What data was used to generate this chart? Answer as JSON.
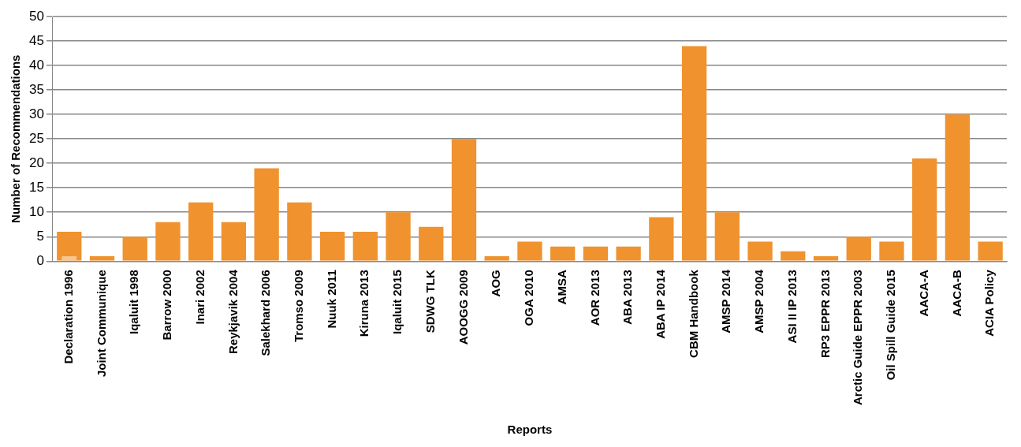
{
  "chart_data": {
    "type": "bar",
    "xlabel": "Reports",
    "ylabel": "Number of Recommendations",
    "categories": [
      "Declaration 1996",
      "Joint Communique",
      "Iqaluit 1998",
      "Barrow 2000",
      "Inari 2002",
      "Reykjavik 2004",
      "Salekhard 2006",
      "Tromso 2009",
      "Nuuk 2011",
      "Kiruna 2013",
      "Iqaluit 2015",
      "SDWG TLK",
      "AOOGG 2009",
      "AOG",
      "OGA 2010",
      "AMSA",
      "AOR 2013",
      "ABA 2013",
      "ABA IP 2014",
      "CBM Handbook",
      "AMSP 2014",
      "AMSP 2004",
      "ASI II IP 2013",
      "RP3 EPPR 2013",
      "Arctic Guide EPPR 2003",
      "Oil Spill Guide 2015",
      "AACA-A",
      "AACA-B",
      "ACIA Policy"
    ],
    "series": [
      {
        "color": "#f0922e",
        "values": [
          6,
          1,
          5,
          8,
          12,
          8,
          19,
          12,
          6,
          6,
          10,
          7,
          25,
          1,
          4,
          3,
          3,
          3,
          9,
          44,
          10,
          4,
          2,
          1,
          5,
          4,
          21,
          30,
          4
        ]
      },
      {
        "color": "#f7c690",
        "values": [
          1,
          null,
          null,
          null,
          null,
          null,
          null,
          null,
          null,
          null,
          null,
          null,
          null,
          null,
          null,
          null,
          null,
          null,
          null,
          null,
          null,
          null,
          null,
          null,
          null,
          null,
          null,
          null,
          null
        ]
      }
    ],
    "ylim": [
      0,
      50
    ],
    "yticks": [
      0,
      5,
      10,
      15,
      20,
      25,
      30,
      35,
      40,
      45,
      50
    ],
    "grid": "y",
    "legend": false
  }
}
